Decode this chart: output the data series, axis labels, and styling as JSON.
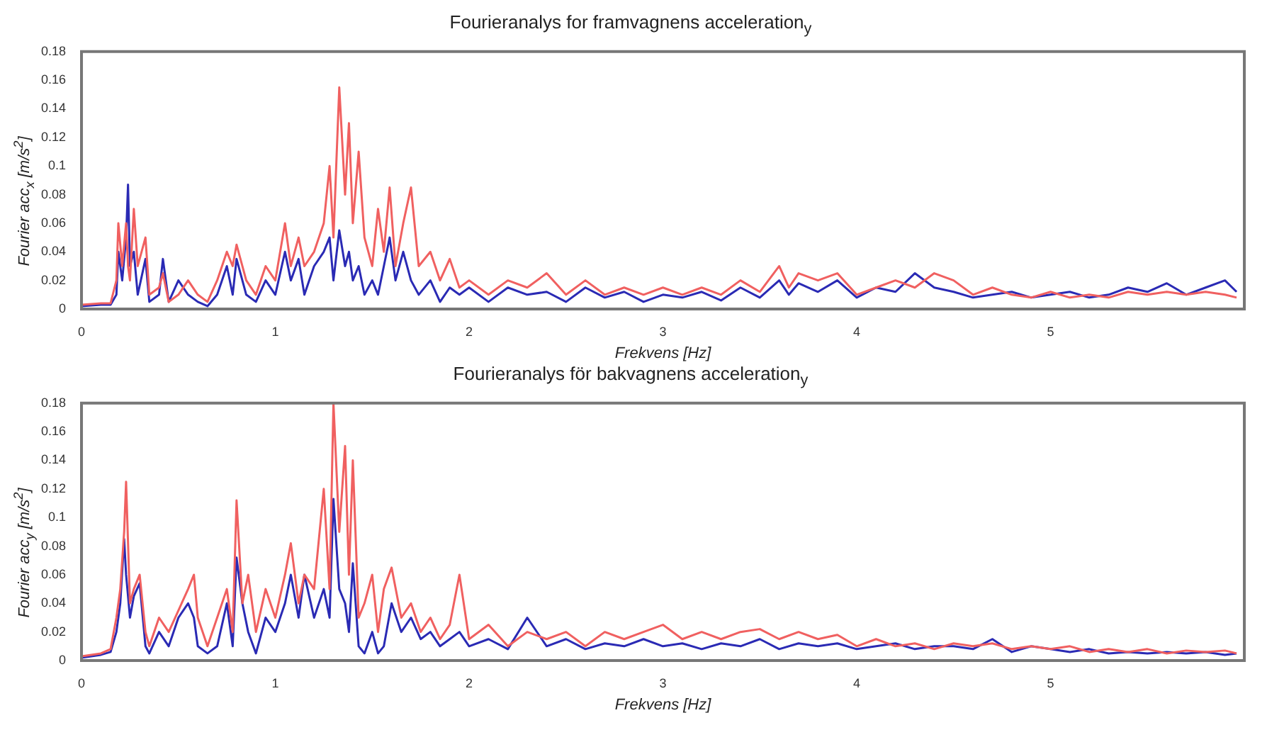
{
  "chart_data": [
    {
      "type": "line",
      "title": "Fourieranalys for framvagnens acceleration$_{y}$",
      "xlabel": "Frekvens [Hz]",
      "ylabel": "Fourier acc$_{x}$ [m/s$^{2}$]",
      "x": [
        0,
        0.1,
        0.15,
        0.18,
        0.19,
        0.21,
        0.23,
        0.24,
        0.25,
        0.27,
        0.29,
        0.33,
        0.35,
        0.4,
        0.42,
        0.45,
        0.5,
        0.55,
        0.6,
        0.65,
        0.7,
        0.75,
        0.78,
        0.8,
        0.85,
        0.9,
        0.95,
        1.0,
        1.05,
        1.08,
        1.12,
        1.15,
        1.2,
        1.25,
        1.28,
        1.3,
        1.33,
        1.36,
        1.38,
        1.4,
        1.43,
        1.46,
        1.5,
        1.53,
        1.56,
        1.59,
        1.62,
        1.66,
        1.7,
        1.74,
        1.8,
        1.85,
        1.9,
        1.95,
        2.0,
        2.1,
        2.2,
        2.3,
        2.4,
        2.5,
        2.6,
        2.7,
        2.8,
        2.9,
        3.0,
        3.1,
        3.2,
        3.3,
        3.4,
        3.5,
        3.6,
        3.65,
        3.7,
        3.8,
        3.9,
        4.0,
        4.1,
        4.2,
        4.3,
        4.4,
        4.5,
        4.6,
        4.7,
        4.8,
        4.9,
        5.0,
        5.1,
        5.2,
        5.3,
        5.4,
        5.5,
        5.6,
        5.7,
        5.8,
        5.9,
        5.96
      ],
      "series": [
        {
          "color": "#f06060",
          "values": [
            0.003,
            0.004,
            0.004,
            0.02,
            0.06,
            0.03,
            0.06,
            0.03,
            0.02,
            0.07,
            0.03,
            0.05,
            0.01,
            0.015,
            0.025,
            0.005,
            0.01,
            0.02,
            0.01,
            0.005,
            0.02,
            0.04,
            0.03,
            0.045,
            0.02,
            0.01,
            0.03,
            0.02,
            0.06,
            0.03,
            0.05,
            0.03,
            0.04,
            0.06,
            0.1,
            0.05,
            0.155,
            0.08,
            0.13,
            0.06,
            0.11,
            0.05,
            0.03,
            0.07,
            0.04,
            0.085,
            0.03,
            0.06,
            0.085,
            0.03,
            0.04,
            0.02,
            0.035,
            0.015,
            0.02,
            0.01,
            0.02,
            0.015,
            0.025,
            0.01,
            0.02,
            0.01,
            0.015,
            0.01,
            0.015,
            0.01,
            0.015,
            0.01,
            0.02,
            0.012,
            0.03,
            0.015,
            0.025,
            0.02,
            0.025,
            0.01,
            0.015,
            0.02,
            0.015,
            0.025,
            0.02,
            0.01,
            0.015,
            0.01,
            0.008,
            0.012,
            0.008,
            0.01,
            0.008,
            0.012,
            0.01,
            0.012,
            0.01,
            0.012,
            0.01,
            0.008
          ]
        },
        {
          "color": "#2a2ab4",
          "values": [
            0.002,
            0.003,
            0.003,
            0.01,
            0.04,
            0.02,
            0.05,
            0.087,
            0.03,
            0.04,
            0.01,
            0.035,
            0.005,
            0.01,
            0.035,
            0.005,
            0.02,
            0.01,
            0.005,
            0.002,
            0.01,
            0.03,
            0.01,
            0.035,
            0.01,
            0.005,
            0.02,
            0.01,
            0.04,
            0.02,
            0.035,
            0.01,
            0.03,
            0.04,
            0.05,
            0.02,
            0.055,
            0.03,
            0.04,
            0.02,
            0.03,
            0.01,
            0.02,
            0.01,
            0.03,
            0.05,
            0.02,
            0.04,
            0.02,
            0.01,
            0.02,
            0.005,
            0.015,
            0.01,
            0.015,
            0.005,
            0.015,
            0.01,
            0.012,
            0.005,
            0.015,
            0.008,
            0.012,
            0.005,
            0.01,
            0.008,
            0.012,
            0.006,
            0.015,
            0.008,
            0.02,
            0.01,
            0.018,
            0.012,
            0.02,
            0.008,
            0.015,
            0.012,
            0.025,
            0.015,
            0.012,
            0.008,
            0.01,
            0.012,
            0.008,
            0.01,
            0.012,
            0.008,
            0.01,
            0.015,
            0.012,
            0.018,
            0.01,
            0.015,
            0.02,
            0.012
          ]
        }
      ],
      "xlim": [
        0,
        6
      ],
      "xticks": [
        0,
        1,
        2,
        3,
        4,
        5
      ],
      "ylim": [
        0,
        0.18
      ],
      "yticks": [
        0,
        0.02,
        0.04,
        0.06,
        0.08,
        0.1,
        0.12,
        0.14,
        0.16,
        0.18
      ]
    },
    {
      "type": "line",
      "title": "Fourieranalys för bakvagnens acceleration$_{y}$",
      "xlabel": "Frekvens [Hz]",
      "ylabel": "Fourier acc$_{y}$ [m/s$^{2}$]",
      "x": [
        0,
        0.1,
        0.15,
        0.18,
        0.2,
        0.22,
        0.23,
        0.25,
        0.27,
        0.3,
        0.33,
        0.35,
        0.4,
        0.45,
        0.5,
        0.55,
        0.58,
        0.6,
        0.65,
        0.7,
        0.75,
        0.78,
        0.8,
        0.83,
        0.86,
        0.9,
        0.95,
        1.0,
        1.05,
        1.08,
        1.12,
        1.15,
        1.2,
        1.25,
        1.28,
        1.3,
        1.33,
        1.36,
        1.38,
        1.4,
        1.43,
        1.46,
        1.5,
        1.53,
        1.56,
        1.6,
        1.65,
        1.7,
        1.75,
        1.8,
        1.85,
        1.9,
        1.95,
        2.0,
        2.1,
        2.2,
        2.3,
        2.4,
        2.5,
        2.6,
        2.7,
        2.8,
        2.9,
        3.0,
        3.1,
        3.2,
        3.3,
        3.4,
        3.5,
        3.6,
        3.7,
        3.8,
        3.9,
        4.0,
        4.1,
        4.2,
        4.3,
        4.4,
        4.5,
        4.6,
        4.7,
        4.8,
        4.9,
        5.0,
        5.1,
        5.2,
        5.3,
        5.4,
        5.5,
        5.6,
        5.7,
        5.8,
        5.9,
        5.96
      ],
      "series": [
        {
          "color": "#f06060",
          "values": [
            0.003,
            0.005,
            0.008,
            0.03,
            0.05,
            0.09,
            0.125,
            0.04,
            0.05,
            0.06,
            0.02,
            0.01,
            0.03,
            0.02,
            0.035,
            0.05,
            0.06,
            0.03,
            0.01,
            0.03,
            0.05,
            0.02,
            0.112,
            0.04,
            0.06,
            0.02,
            0.05,
            0.03,
            0.06,
            0.082,
            0.04,
            0.06,
            0.05,
            0.12,
            0.05,
            0.18,
            0.09,
            0.15,
            0.06,
            0.14,
            0.03,
            0.04,
            0.06,
            0.02,
            0.05,
            0.065,
            0.03,
            0.04,
            0.02,
            0.03,
            0.015,
            0.025,
            0.06,
            0.015,
            0.025,
            0.01,
            0.02,
            0.015,
            0.02,
            0.01,
            0.02,
            0.015,
            0.02,
            0.025,
            0.015,
            0.02,
            0.015,
            0.02,
            0.022,
            0.015,
            0.02,
            0.015,
            0.018,
            0.01,
            0.015,
            0.01,
            0.012,
            0.008,
            0.012,
            0.01,
            0.012,
            0.008,
            0.01,
            0.008,
            0.01,
            0.006,
            0.008,
            0.006,
            0.008,
            0.005,
            0.007,
            0.006,
            0.007,
            0.005
          ]
        },
        {
          "color": "#2a2ab4",
          "values": [
            0.002,
            0.004,
            0.006,
            0.02,
            0.04,
            0.085,
            0.06,
            0.03,
            0.045,
            0.054,
            0.01,
            0.005,
            0.02,
            0.01,
            0.03,
            0.04,
            0.03,
            0.01,
            0.005,
            0.01,
            0.04,
            0.01,
            0.072,
            0.04,
            0.02,
            0.005,
            0.03,
            0.02,
            0.04,
            0.06,
            0.03,
            0.06,
            0.03,
            0.05,
            0.03,
            0.113,
            0.05,
            0.04,
            0.02,
            0.068,
            0.01,
            0.005,
            0.02,
            0.005,
            0.01,
            0.04,
            0.02,
            0.03,
            0.015,
            0.02,
            0.01,
            0.015,
            0.02,
            0.01,
            0.015,
            0.008,
            0.03,
            0.01,
            0.015,
            0.008,
            0.012,
            0.01,
            0.015,
            0.01,
            0.012,
            0.008,
            0.012,
            0.01,
            0.015,
            0.008,
            0.012,
            0.01,
            0.012,
            0.008,
            0.01,
            0.012,
            0.008,
            0.01,
            0.01,
            0.008,
            0.015,
            0.006,
            0.01,
            0.008,
            0.006,
            0.008,
            0.005,
            0.006,
            0.005,
            0.006,
            0.005,
            0.006,
            0.004,
            0.005
          ]
        }
      ],
      "xlim": [
        0,
        6
      ],
      "xticks": [
        0,
        1,
        2,
        3,
        4,
        5
      ],
      "ylim": [
        0,
        0.18
      ],
      "yticks": [
        0,
        0.02,
        0.04,
        0.06,
        0.08,
        0.1,
        0.12,
        0.14,
        0.16,
        0.18
      ]
    }
  ]
}
